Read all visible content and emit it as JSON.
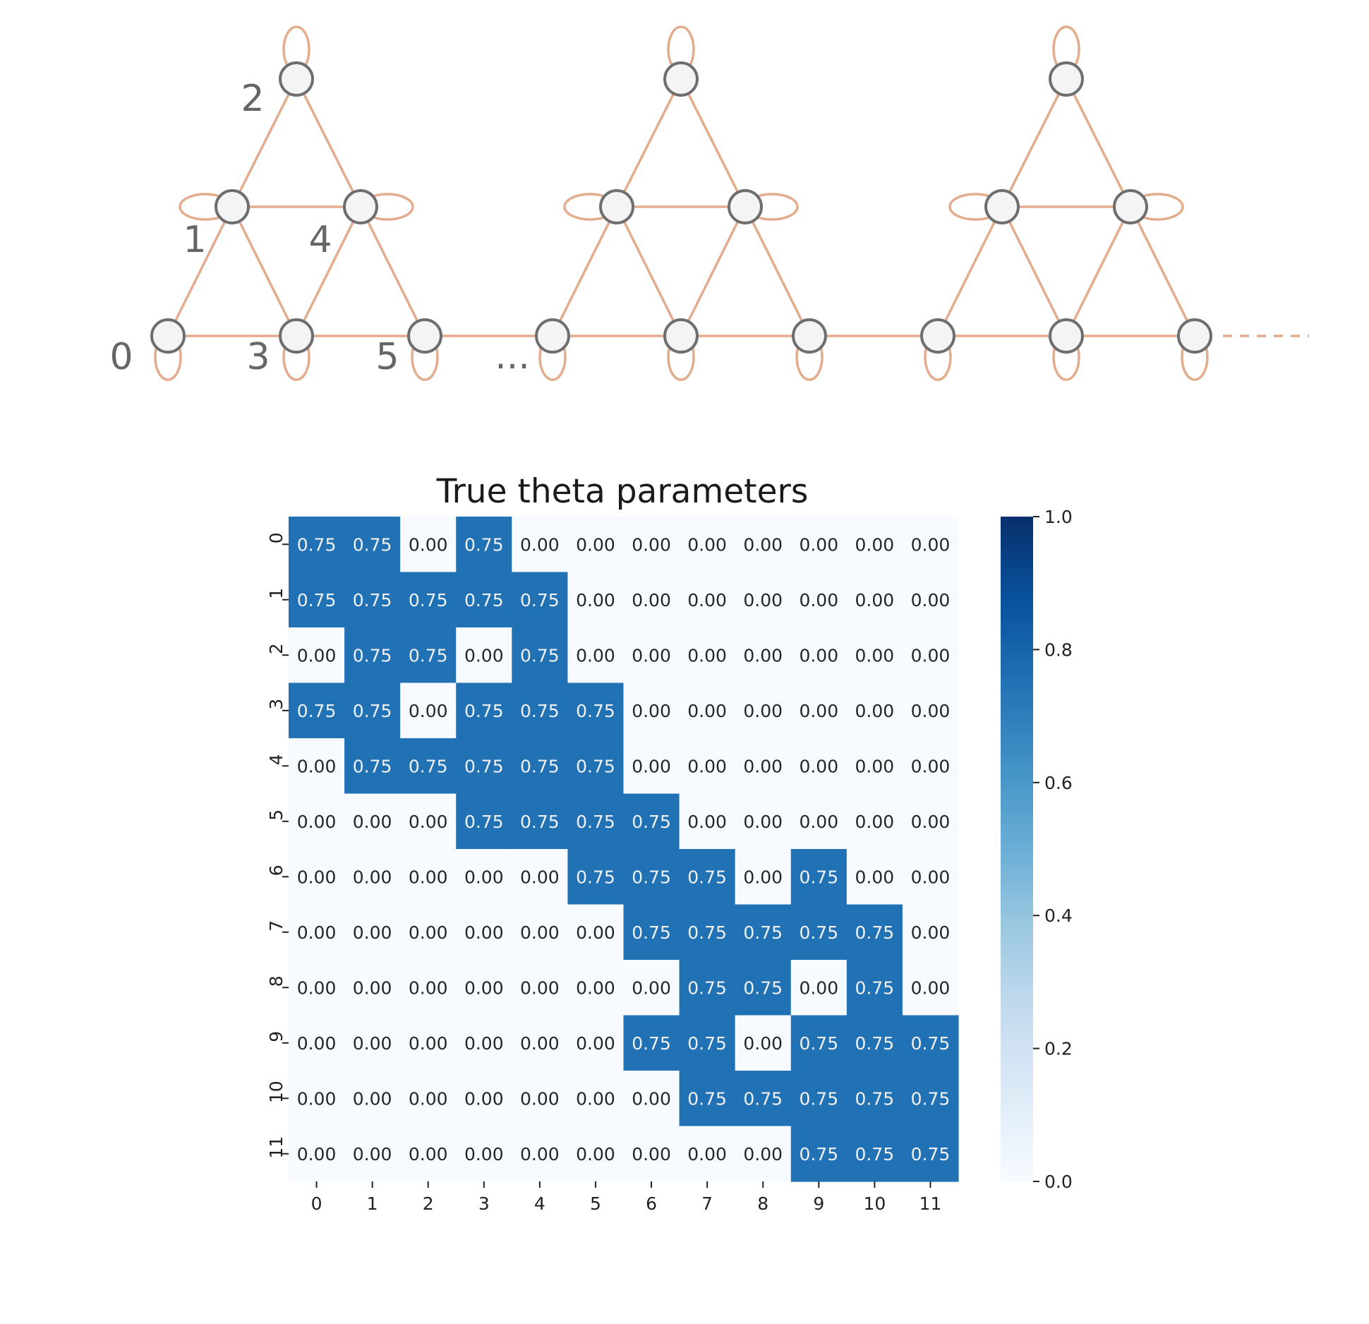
{
  "graph": {
    "node_labels": [
      "0",
      "1",
      "2",
      "3",
      "4",
      "5"
    ],
    "ellipsis": "...",
    "edge_color": "#e3ac8c",
    "node_fill": "#f4f4f4",
    "node_stroke": "#6e6e6e"
  },
  "chart_data": {
    "type": "heatmap",
    "title": "True theta parameters",
    "x_categories": [
      "0",
      "1",
      "2",
      "3",
      "4",
      "5",
      "6",
      "7",
      "8",
      "9",
      "10",
      "11"
    ],
    "y_categories": [
      "0",
      "1",
      "2",
      "3",
      "4",
      "5",
      "6",
      "7",
      "8",
      "9",
      "10",
      "11"
    ],
    "values": [
      [
        0.75,
        0.75,
        0.0,
        0.75,
        0.0,
        0.0,
        0.0,
        0.0,
        0.0,
        0.0,
        0.0,
        0.0
      ],
      [
        0.75,
        0.75,
        0.75,
        0.75,
        0.75,
        0.0,
        0.0,
        0.0,
        0.0,
        0.0,
        0.0,
        0.0
      ],
      [
        0.0,
        0.75,
        0.75,
        0.0,
        0.75,
        0.0,
        0.0,
        0.0,
        0.0,
        0.0,
        0.0,
        0.0
      ],
      [
        0.75,
        0.75,
        0.0,
        0.75,
        0.75,
        0.75,
        0.0,
        0.0,
        0.0,
        0.0,
        0.0,
        0.0
      ],
      [
        0.0,
        0.75,
        0.75,
        0.75,
        0.75,
        0.75,
        0.0,
        0.0,
        0.0,
        0.0,
        0.0,
        0.0
      ],
      [
        0.0,
        0.0,
        0.0,
        0.75,
        0.75,
        0.75,
        0.75,
        0.0,
        0.0,
        0.0,
        0.0,
        0.0
      ],
      [
        0.0,
        0.0,
        0.0,
        0.0,
        0.0,
        0.75,
        0.75,
        0.75,
        0.0,
        0.75,
        0.0,
        0.0
      ],
      [
        0.0,
        0.0,
        0.0,
        0.0,
        0.0,
        0.0,
        0.75,
        0.75,
        0.75,
        0.75,
        0.75,
        0.0
      ],
      [
        0.0,
        0.0,
        0.0,
        0.0,
        0.0,
        0.0,
        0.0,
        0.75,
        0.75,
        0.0,
        0.75,
        0.0
      ],
      [
        0.0,
        0.0,
        0.0,
        0.0,
        0.0,
        0.0,
        0.75,
        0.75,
        0.0,
        0.75,
        0.75,
        0.75
      ],
      [
        0.0,
        0.0,
        0.0,
        0.0,
        0.0,
        0.0,
        0.0,
        0.75,
        0.75,
        0.75,
        0.75,
        0.75
      ],
      [
        0.0,
        0.0,
        0.0,
        0.0,
        0.0,
        0.0,
        0.0,
        0.0,
        0.0,
        0.75,
        0.75,
        0.75
      ]
    ],
    "value_format": "0.00",
    "colormap": "Blues",
    "vmin": 0.0,
    "vmax": 1.0,
    "colorbar_ticks": [
      "0.0",
      "0.2",
      "0.4",
      "0.6",
      "0.8",
      "1.0"
    ],
    "grid": false,
    "colorbar_position": "right",
    "colors": {
      "low": "#f7fbff",
      "high": "#08306b",
      "cell_high_value": "#2070b4"
    }
  }
}
